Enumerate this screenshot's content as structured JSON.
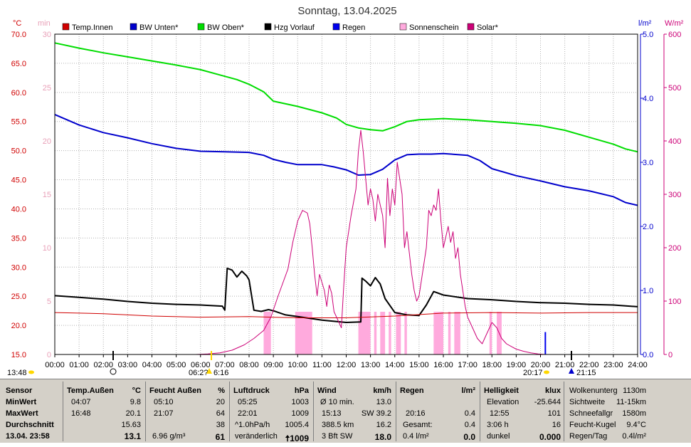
{
  "title": "Sonntag, 13.04.2025",
  "colors": {
    "temp_innen": "#d00000",
    "bw_unten": "#0000cc",
    "bw_oben": "#00dd00",
    "hzg_vorlauf": "#000000",
    "regen": "#0000ee",
    "sonnenschein": "#ffaadd",
    "solar": "#cc0077",
    "grid": "#b0b0b0",
    "panel_bg": "#d4d0c8"
  },
  "chart_data": {
    "type": "line",
    "title": "Sonntag, 13.04.2025",
    "legend": [
      "Temp.Innen",
      "BW Unten*",
      "BW Oben*",
      "Hzg Vorlauf",
      "Regen",
      "Sonnenschein",
      "Solar*"
    ],
    "legend_placement": "top",
    "grid": true,
    "x_range": [
      0,
      24
    ],
    "x_ticks": [
      "00:00",
      "01:00",
      "02:00",
      "03:00",
      "04:00",
      "05:00",
      "06:00",
      "07:00",
      "08:00",
      "09:00",
      "10:00",
      "11:00",
      "12:00",
      "13:00",
      "14:00",
      "15:00",
      "16:00",
      "17:00",
      "18:00",
      "19:00",
      "20:00",
      "21:00",
      "22:00",
      "23:00",
      "24:00"
    ],
    "axes": {
      "temp": {
        "unit": "°C",
        "range": [
          15,
          70
        ],
        "ticks": [
          "15.0",
          "20.0",
          "25.0",
          "30.0",
          "35.0",
          "40.0",
          "45.0",
          "50.0",
          "55.0",
          "60.0",
          "65.0",
          "70.0"
        ]
      },
      "min": {
        "unit": "min",
        "range": [
          0,
          30
        ],
        "ticks": [
          "0",
          "5",
          "10",
          "15",
          "20",
          "25",
          "30"
        ]
      },
      "rain": {
        "unit": "l/m²",
        "range": [
          0,
          5
        ],
        "ticks": [
          "0.0",
          "1.0",
          "2.0",
          "3.0",
          "4.0",
          "5.0"
        ]
      },
      "solar": {
        "unit": "W/m²",
        "range": [
          0,
          600
        ],
        "ticks": [
          "0",
          "100",
          "200",
          "300",
          "400",
          "500",
          "600"
        ]
      }
    },
    "series": [
      {
        "name": "BW Oben*",
        "axis": "temp",
        "x": [
          0,
          1,
          2,
          3,
          4,
          5,
          6,
          6.8,
          7.5,
          8,
          8.6,
          9,
          10,
          11,
          11.6,
          12,
          12.5,
          13,
          13.5,
          14,
          14.5,
          15,
          16,
          17,
          18,
          19,
          20,
          21,
          22,
          23,
          23.5,
          24
        ],
        "y": [
          68.5,
          67.6,
          66.8,
          66.1,
          65.4,
          64.7,
          63.9,
          63,
          62.2,
          61.4,
          60.1,
          58.5,
          57.6,
          56.5,
          55.6,
          54.5,
          53.9,
          53.6,
          53.4,
          54.1,
          55,
          55.3,
          55.5,
          55.3,
          55,
          54.7,
          54.3,
          53.5,
          52.3,
          51.1,
          50.3,
          49.8
        ]
      },
      {
        "name": "BW Unten*",
        "axis": "temp",
        "x": [
          0,
          1,
          2,
          3,
          4,
          5,
          6,
          7,
          8,
          8.6,
          9,
          9.5,
          10,
          11,
          11.5,
          12,
          12.5,
          13,
          13.5,
          14,
          14.5,
          15,
          15.5,
          16,
          17,
          17.5,
          18,
          19,
          20,
          21,
          22,
          23,
          23.5,
          24
        ],
        "y": [
          56.2,
          54.4,
          53.1,
          52.2,
          51.2,
          50.4,
          49.9,
          49.8,
          49.7,
          49.2,
          48.5,
          48,
          47.6,
          47.6,
          47.2,
          46.7,
          45.8,
          45.9,
          46.8,
          48.4,
          49.3,
          49.4,
          49.4,
          49.5,
          49.2,
          48.3,
          46.9,
          45.7,
          44.8,
          43.8,
          43.1,
          42.1,
          41.1,
          40.6
        ]
      },
      {
        "name": "Hzg Vorlauf",
        "axis": "temp",
        "x": [
          0,
          1,
          2,
          3,
          4,
          5,
          6,
          6.9,
          7,
          7.1,
          7.3,
          7.5,
          7.7,
          7.9,
          8,
          8.2,
          8.5,
          8.8,
          9,
          9.5,
          10,
          11,
          12,
          12.6,
          12.65,
          12.8,
          13,
          13.2,
          13.4,
          13.6,
          14,
          14.5,
          15,
          15.3,
          15.6,
          16,
          17,
          18,
          19,
          20,
          21,
          22,
          23,
          24
        ],
        "y": [
          25.1,
          24.8,
          24.5,
          24.1,
          23.8,
          23.6,
          23.5,
          23.3,
          22.6,
          29.8,
          29.5,
          28.3,
          29.3,
          28.5,
          27.8,
          22.6,
          22.4,
          22.7,
          22.5,
          21.8,
          21.5,
          20.9,
          20.5,
          20.6,
          28.1,
          27.6,
          26.8,
          28.2,
          27.1,
          24.6,
          22.2,
          21.8,
          21.7,
          23.5,
          25.8,
          25.2,
          24.6,
          24.4,
          24.1,
          23.9,
          23.8,
          23.6,
          23.5,
          23.2
        ]
      },
      {
        "name": "Temp.Innen",
        "axis": "temp",
        "x": [
          0,
          2,
          4,
          6,
          8,
          10,
          12,
          14,
          16,
          18,
          20,
          22,
          24
        ],
        "y": [
          22.2,
          22,
          21.6,
          21.4,
          21.5,
          21.3,
          21.3,
          21.6,
          22.1,
          22.2,
          22.1,
          22.2,
          22.2
        ]
      },
      {
        "name": "Solar*",
        "axis": "solar",
        "x": [
          0,
          5.8,
          6.3,
          6.8,
          7.3,
          7.8,
          8.2,
          8.6,
          8.9,
          9.2,
          9.6,
          9.8,
          10,
          10.2,
          10.4,
          10.5,
          10.6,
          10.7,
          10.8,
          10.9,
          11.1,
          11.2,
          11.3,
          11.4,
          11.5,
          11.6,
          11.7,
          11.8,
          11.9,
          12,
          12.2,
          12.4,
          12.5,
          12.6,
          12.7,
          12.8,
          12.9,
          13,
          13.1,
          13.2,
          13.3,
          13.4,
          13.5,
          13.6,
          13.7,
          13.8,
          13.9,
          14,
          14.1,
          14.2,
          14.3,
          14.4,
          14.5,
          14.6,
          14.7,
          14.8,
          14.9,
          15,
          15.1,
          15.2,
          15.3,
          15.4,
          15.5,
          15.6,
          15.7,
          15.8,
          15.9,
          16,
          16.1,
          16.2,
          16.3,
          16.4,
          16.5,
          16.6,
          16.7,
          16.8,
          16.9,
          17,
          17.2,
          17.4,
          17.6,
          17.8,
          18,
          18.2,
          18.4,
          18.6,
          18.8,
          19,
          19.3,
          19.6,
          19.9,
          20.2,
          24
        ],
        "y": [
          0,
          0,
          1,
          3,
          8,
          18,
          30,
          45,
          70,
          110,
          160,
          210,
          250,
          270,
          265,
          245,
          200,
          150,
          110,
          150,
          120,
          90,
          130,
          115,
          80,
          70,
          60,
          50,
          130,
          200,
          260,
          310,
          380,
          420,
          380,
          330,
          280,
          310,
          290,
          250,
          300,
          280,
          260,
          200,
          330,
          260,
          310,
          280,
          360,
          330,
          300,
          200,
          230,
          190,
          150,
          120,
          100,
          110,
          140,
          170,
          200,
          270,
          260,
          280,
          270,
          310,
          250,
          200,
          220,
          240,
          210,
          230,
          180,
          200,
          150,
          120,
          90,
          70,
          50,
          30,
          20,
          40,
          60,
          50,
          30,
          20,
          15,
          10,
          6,
          3,
          1,
          0,
          0
        ]
      },
      {
        "name": "Regen",
        "axis": "rain",
        "x": [
          20.2
        ],
        "y": [
          0.35
        ]
      }
    ],
    "sunshine_blocks": [
      [
        8.6,
        8.9
      ],
      [
        9.9,
        10.6
      ],
      [
        12.5,
        13.0
      ],
      [
        13.15,
        13.25
      ],
      [
        13.4,
        13.6
      ],
      [
        13.75,
        13.85
      ],
      [
        14.05,
        14.25
      ],
      [
        14.4,
        14.5
      ],
      [
        15.6,
        16.0
      ],
      [
        16.2,
        16.3
      ],
      [
        16.45,
        16.7
      ],
      [
        17.9,
        18.0
      ],
      [
        18.2,
        18.4
      ]
    ],
    "sunshine_min": 4,
    "time_marks": {
      "sunrise": "06:2?",
      "daylight_end": "6:16",
      "sunset": "20:17",
      "moonset": "21:15",
      "left": "13:48"
    }
  },
  "stats": {
    "sensor": {
      "title": "Sensor",
      "min": "MinWert",
      "max": "MaxWert",
      "avg": "Durchschnitt",
      "now": "13.04. 23:58"
    },
    "temp": {
      "title": "Temp.Außen",
      "unit": "°C",
      "min_t": "04:07",
      "min_v": "9.8",
      "max_t": "16:48",
      "max_v": "20.1",
      "avg": "15.63",
      "now": "13.1"
    },
    "humid": {
      "title": "Feucht Außen",
      "unit": "%",
      "min_t": "05:10",
      "min_v": "20",
      "max_t": "21:07",
      "max_v": "64",
      "avg": "38",
      "abs": "6.96 g/m³",
      "now": "61"
    },
    "press": {
      "title": "Luftdruck",
      "unit": "hPa",
      "min_t": "05:25",
      "min_v": "1003",
      "max_t": "22:01",
      "max_v": "1009",
      "trend": "^1.0hPa/h",
      "avg": "1005.4",
      "desc": "veränderlich",
      "now": "1009"
    },
    "wind": {
      "title": "Wind",
      "unit": "km/h",
      "l1": "Ø 10 min.",
      "v1": "13.0",
      "l2": "15:13",
      "v2": "SW 39.2",
      "l3": "388.5 km",
      "v3": "16.2",
      "l4": "3 Bft SW",
      "v4": "18.0"
    },
    "rain": {
      "title": "Regen",
      "unit": "l/m²",
      "l2": "20:16",
      "v2": "0.4",
      "l3": "Gesamt:",
      "v3": "0.4",
      "l4": "0.4 l/m²",
      "v4": "0.0"
    },
    "light": {
      "title": "Helligkeit",
      "unit": "klux",
      "l1": "Elevation",
      "v1": "-25.644",
      "l2": "12:55",
      "v2": "101",
      "l3": "3:06 h",
      "v3": "16",
      "l4": "dunkel",
      "v4": "0.000"
    },
    "misc": {
      "l1": "Wolkenunterg",
      "v1": "1130m",
      "l2": "Sichtweite",
      "v2": "11-15km",
      "l3": "Schneefallgr",
      "v3": "1580m",
      "l4": "Feucht-Kugel",
      "v4": "9.4°C",
      "l5": "Regen/Tag",
      "v5": "0.4l/m²"
    }
  }
}
